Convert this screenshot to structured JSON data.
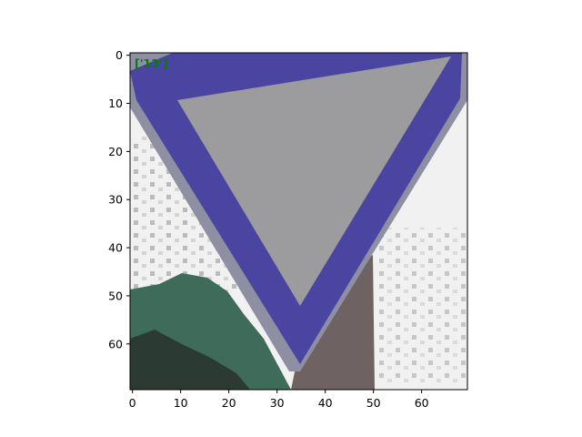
{
  "figure": {
    "annotation": "['13']",
    "annotation_color": "#008000",
    "x_ticks": [
      "0",
      "10",
      "20",
      "30",
      "40",
      "50",
      "60"
    ],
    "y_ticks": [
      "0",
      "10",
      "20",
      "30",
      "40",
      "50",
      "60"
    ],
    "x_range": [
      -0.5,
      69.5
    ],
    "y_range": [
      69.5,
      -0.5
    ],
    "y_axis_inverted": true,
    "image": {
      "subject": "yield-sign",
      "colors": {
        "border": "#4a45a0",
        "inner": "#9c9c9e",
        "background": "#f2f1f1",
        "foliage": "#3f6b5a",
        "post": "#6e6262"
      }
    }
  }
}
